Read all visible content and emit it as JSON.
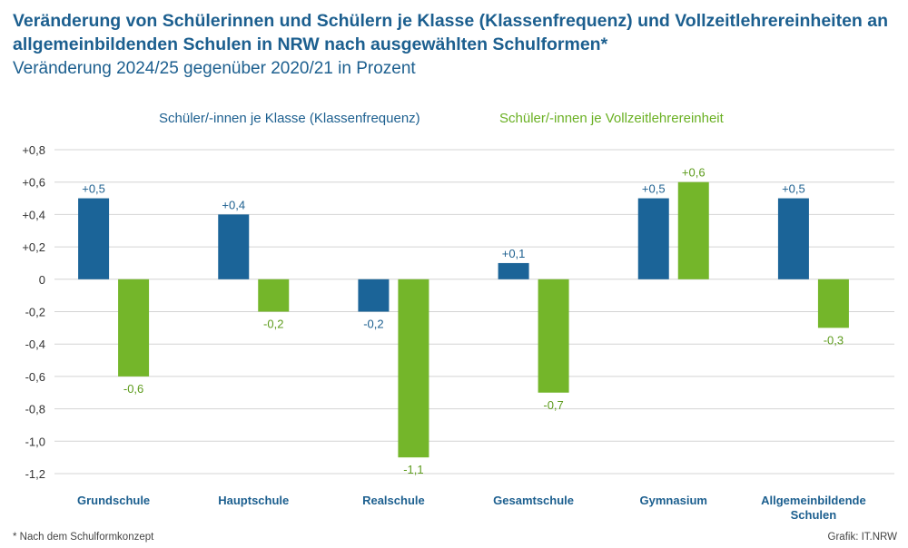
{
  "header": {
    "title": "Veränderung von Schülerinnen und Schülern je Klasse (Klassenfrequenz) und Vollzeitlehrereinheiten an allgemeinbildenden Schulen in NRW nach ausgewählten Schulformen*",
    "subtitle": "Veränderung 2024/25 gegenüber 2020/21 in Prozent"
  },
  "footer": {
    "footnote": "* Nach dem Schulformkonzept",
    "source": "Grafik: IT.NRW"
  },
  "colors": {
    "series1": "#1b6498",
    "series2": "#74b62a",
    "label1": "#1c5f8f",
    "label2": "#5e9c1e",
    "grid": "#d4d4d4"
  },
  "chart_data": {
    "type": "bar",
    "categories": [
      [
        "Grundschule"
      ],
      [
        "Hauptschule"
      ],
      [
        "Realschule"
      ],
      [
        "Gesamtschule"
      ],
      [
        "Gymnasium"
      ],
      [
        "Allgemeinbildende",
        "Schulen"
      ]
    ],
    "series": [
      {
        "name": "Schüler/-innen je Klasse (Klassenfrequenz)",
        "values": [
          0.5,
          0.4,
          -0.2,
          0.1,
          0.5,
          0.5
        ],
        "labels": [
          "+0,5",
          "+0,4",
          "-0,2",
          "+0,1",
          "+0,5",
          "+0,5"
        ]
      },
      {
        "name": "Schüler/-innen je Vollzeitlehrereinheit",
        "values": [
          -0.6,
          -0.2,
          -1.1,
          -0.7,
          0.6,
          -0.3
        ],
        "labels": [
          "-0,6",
          "-0,2",
          "-1,1",
          "-0,7",
          "+0,6",
          "-0,3"
        ]
      }
    ],
    "yticks": [
      0.8,
      0.6,
      0.4,
      0.2,
      0,
      -0.2,
      -0.4,
      -0.6,
      -0.8,
      -1.0,
      -1.2
    ],
    "ytick_labels": [
      "+0,8",
      "+0,6",
      "+0,4",
      "+0,2",
      "0",
      "-0,2",
      "-0,4",
      "-0,6",
      "-0,8",
      "-1,0",
      "-1,2"
    ],
    "ylim": [
      -1.2,
      0.8
    ],
    "grid": true,
    "legend_position": "top"
  }
}
